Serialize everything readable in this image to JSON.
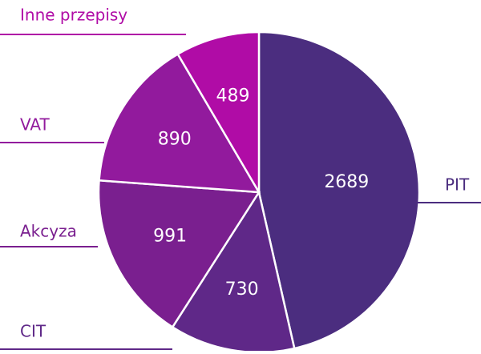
{
  "chart_data": {
    "type": "pie",
    "categories": [
      "PIT",
      "CIT",
      "Akcyza",
      "VAT",
      "Inne przepisy"
    ],
    "values": [
      2689,
      730,
      991,
      890,
      489
    ],
    "colors": [
      "#4b2d7f",
      "#5f2888",
      "#7a1f8f",
      "#921a9d",
      "#b00ca6"
    ]
  }
}
